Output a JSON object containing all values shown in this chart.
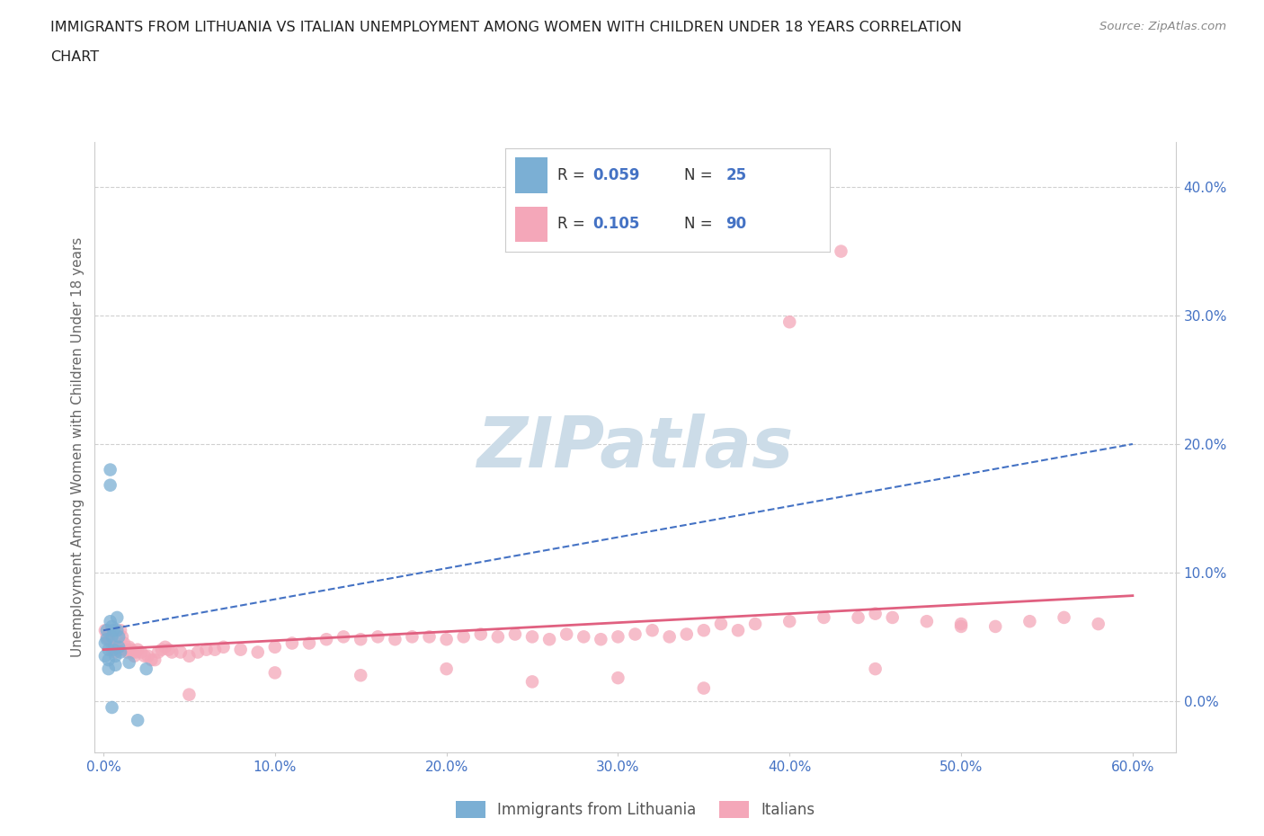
{
  "title_line1": "IMMIGRANTS FROM LITHUANIA VS ITALIAN UNEMPLOYMENT AMONG WOMEN WITH CHILDREN UNDER 18 YEARS CORRELATION",
  "title_line2": "CHART",
  "source": "Source: ZipAtlas.com",
  "ylabel": "Unemployment Among Women with Children Under 18 years",
  "xlim": [
    -0.005,
    0.625
  ],
  "ylim": [
    -0.04,
    0.435
  ],
  "yticks": [
    0.0,
    0.1,
    0.2,
    0.3,
    0.4
  ],
  "ytick_labels": [
    "0.0%",
    "10.0%",
    "20.0%",
    "30.0%",
    "40.0%"
  ],
  "xticks": [
    0.0,
    0.1,
    0.2,
    0.3,
    0.4,
    0.5,
    0.6
  ],
  "xtick_labels": [
    "0.0%",
    "10.0%",
    "20.0%",
    "30.0%",
    "40.0%",
    "50.0%",
    "60.0%"
  ],
  "blue_R": "0.059",
  "blue_N": "25",
  "pink_R": "0.105",
  "pink_N": "90",
  "blue_scatter_x": [
    0.001,
    0.001,
    0.002,
    0.002,
    0.003,
    0.003,
    0.003,
    0.004,
    0.004,
    0.004,
    0.005,
    0.005,
    0.005,
    0.006,
    0.006,
    0.007,
    0.007,
    0.008,
    0.008,
    0.009,
    0.009,
    0.01,
    0.015,
    0.02,
    0.025
  ],
  "blue_scatter_y": [
    0.045,
    0.035,
    0.055,
    0.048,
    0.04,
    0.032,
    0.025,
    0.18,
    0.168,
    0.062,
    0.058,
    0.05,
    -0.005,
    0.055,
    0.04,
    0.035,
    0.028,
    0.065,
    0.055,
    0.05,
    0.042,
    0.038,
    0.03,
    -0.015,
    0.025
  ],
  "pink_scatter_x": [
    0.001,
    0.002,
    0.003,
    0.004,
    0.005,
    0.005,
    0.006,
    0.007,
    0.008,
    0.009,
    0.01,
    0.011,
    0.012,
    0.013,
    0.014,
    0.015,
    0.016,
    0.017,
    0.018,
    0.019,
    0.02,
    0.022,
    0.024,
    0.026,
    0.028,
    0.03,
    0.032,
    0.034,
    0.036,
    0.038,
    0.04,
    0.045,
    0.05,
    0.055,
    0.06,
    0.065,
    0.07,
    0.08,
    0.09,
    0.1,
    0.11,
    0.12,
    0.13,
    0.14,
    0.15,
    0.16,
    0.17,
    0.18,
    0.19,
    0.2,
    0.21,
    0.22,
    0.23,
    0.24,
    0.25,
    0.26,
    0.27,
    0.28,
    0.29,
    0.3,
    0.31,
    0.32,
    0.33,
    0.34,
    0.35,
    0.36,
    0.37,
    0.38,
    0.4,
    0.42,
    0.43,
    0.44,
    0.45,
    0.46,
    0.48,
    0.5,
    0.52,
    0.54,
    0.56,
    0.58,
    0.4,
    0.5,
    0.2,
    0.25,
    0.15,
    0.3,
    0.1,
    0.05,
    0.35,
    0.45
  ],
  "pink_scatter_y": [
    0.055,
    0.05,
    0.048,
    0.052,
    0.045,
    0.04,
    0.042,
    0.038,
    0.042,
    0.04,
    0.055,
    0.05,
    0.045,
    0.04,
    0.038,
    0.042,
    0.04,
    0.038,
    0.035,
    0.038,
    0.04,
    0.038,
    0.035,
    0.035,
    0.032,
    0.032,
    0.038,
    0.04,
    0.042,
    0.04,
    0.038,
    0.038,
    0.035,
    0.038,
    0.04,
    0.04,
    0.042,
    0.04,
    0.038,
    0.042,
    0.045,
    0.045,
    0.048,
    0.05,
    0.048,
    0.05,
    0.048,
    0.05,
    0.05,
    0.048,
    0.05,
    0.052,
    0.05,
    0.052,
    0.05,
    0.048,
    0.052,
    0.05,
    0.048,
    0.05,
    0.052,
    0.055,
    0.05,
    0.052,
    0.055,
    0.06,
    0.055,
    0.06,
    0.062,
    0.065,
    0.35,
    0.065,
    0.068,
    0.065,
    0.062,
    0.06,
    0.058,
    0.062,
    0.065,
    0.06,
    0.295,
    0.058,
    0.025,
    0.015,
    0.02,
    0.018,
    0.022,
    0.005,
    0.01,
    0.025
  ],
  "blue_trend_x": [
    0.0,
    0.6
  ],
  "blue_trend_y": [
    0.055,
    0.2
  ],
  "pink_trend_x": [
    0.0,
    0.6
  ],
  "pink_trend_y": [
    0.04,
    0.082
  ],
  "blue_scatter_color": "#7bafd4",
  "pink_scatter_color": "#f4a7b9",
  "blue_trend_color": "#4472c4",
  "pink_trend_color": "#e06080",
  "grid_color": "#d0d0d0",
  "watermark_text": "ZIPatlas",
  "watermark_color": "#ccdce8",
  "tick_label_color": "#4472c4",
  "title_color": "#222222",
  "axis_label_color": "#666666",
  "legend_text_color": "#333333",
  "bottom_legend_color": "#555555"
}
